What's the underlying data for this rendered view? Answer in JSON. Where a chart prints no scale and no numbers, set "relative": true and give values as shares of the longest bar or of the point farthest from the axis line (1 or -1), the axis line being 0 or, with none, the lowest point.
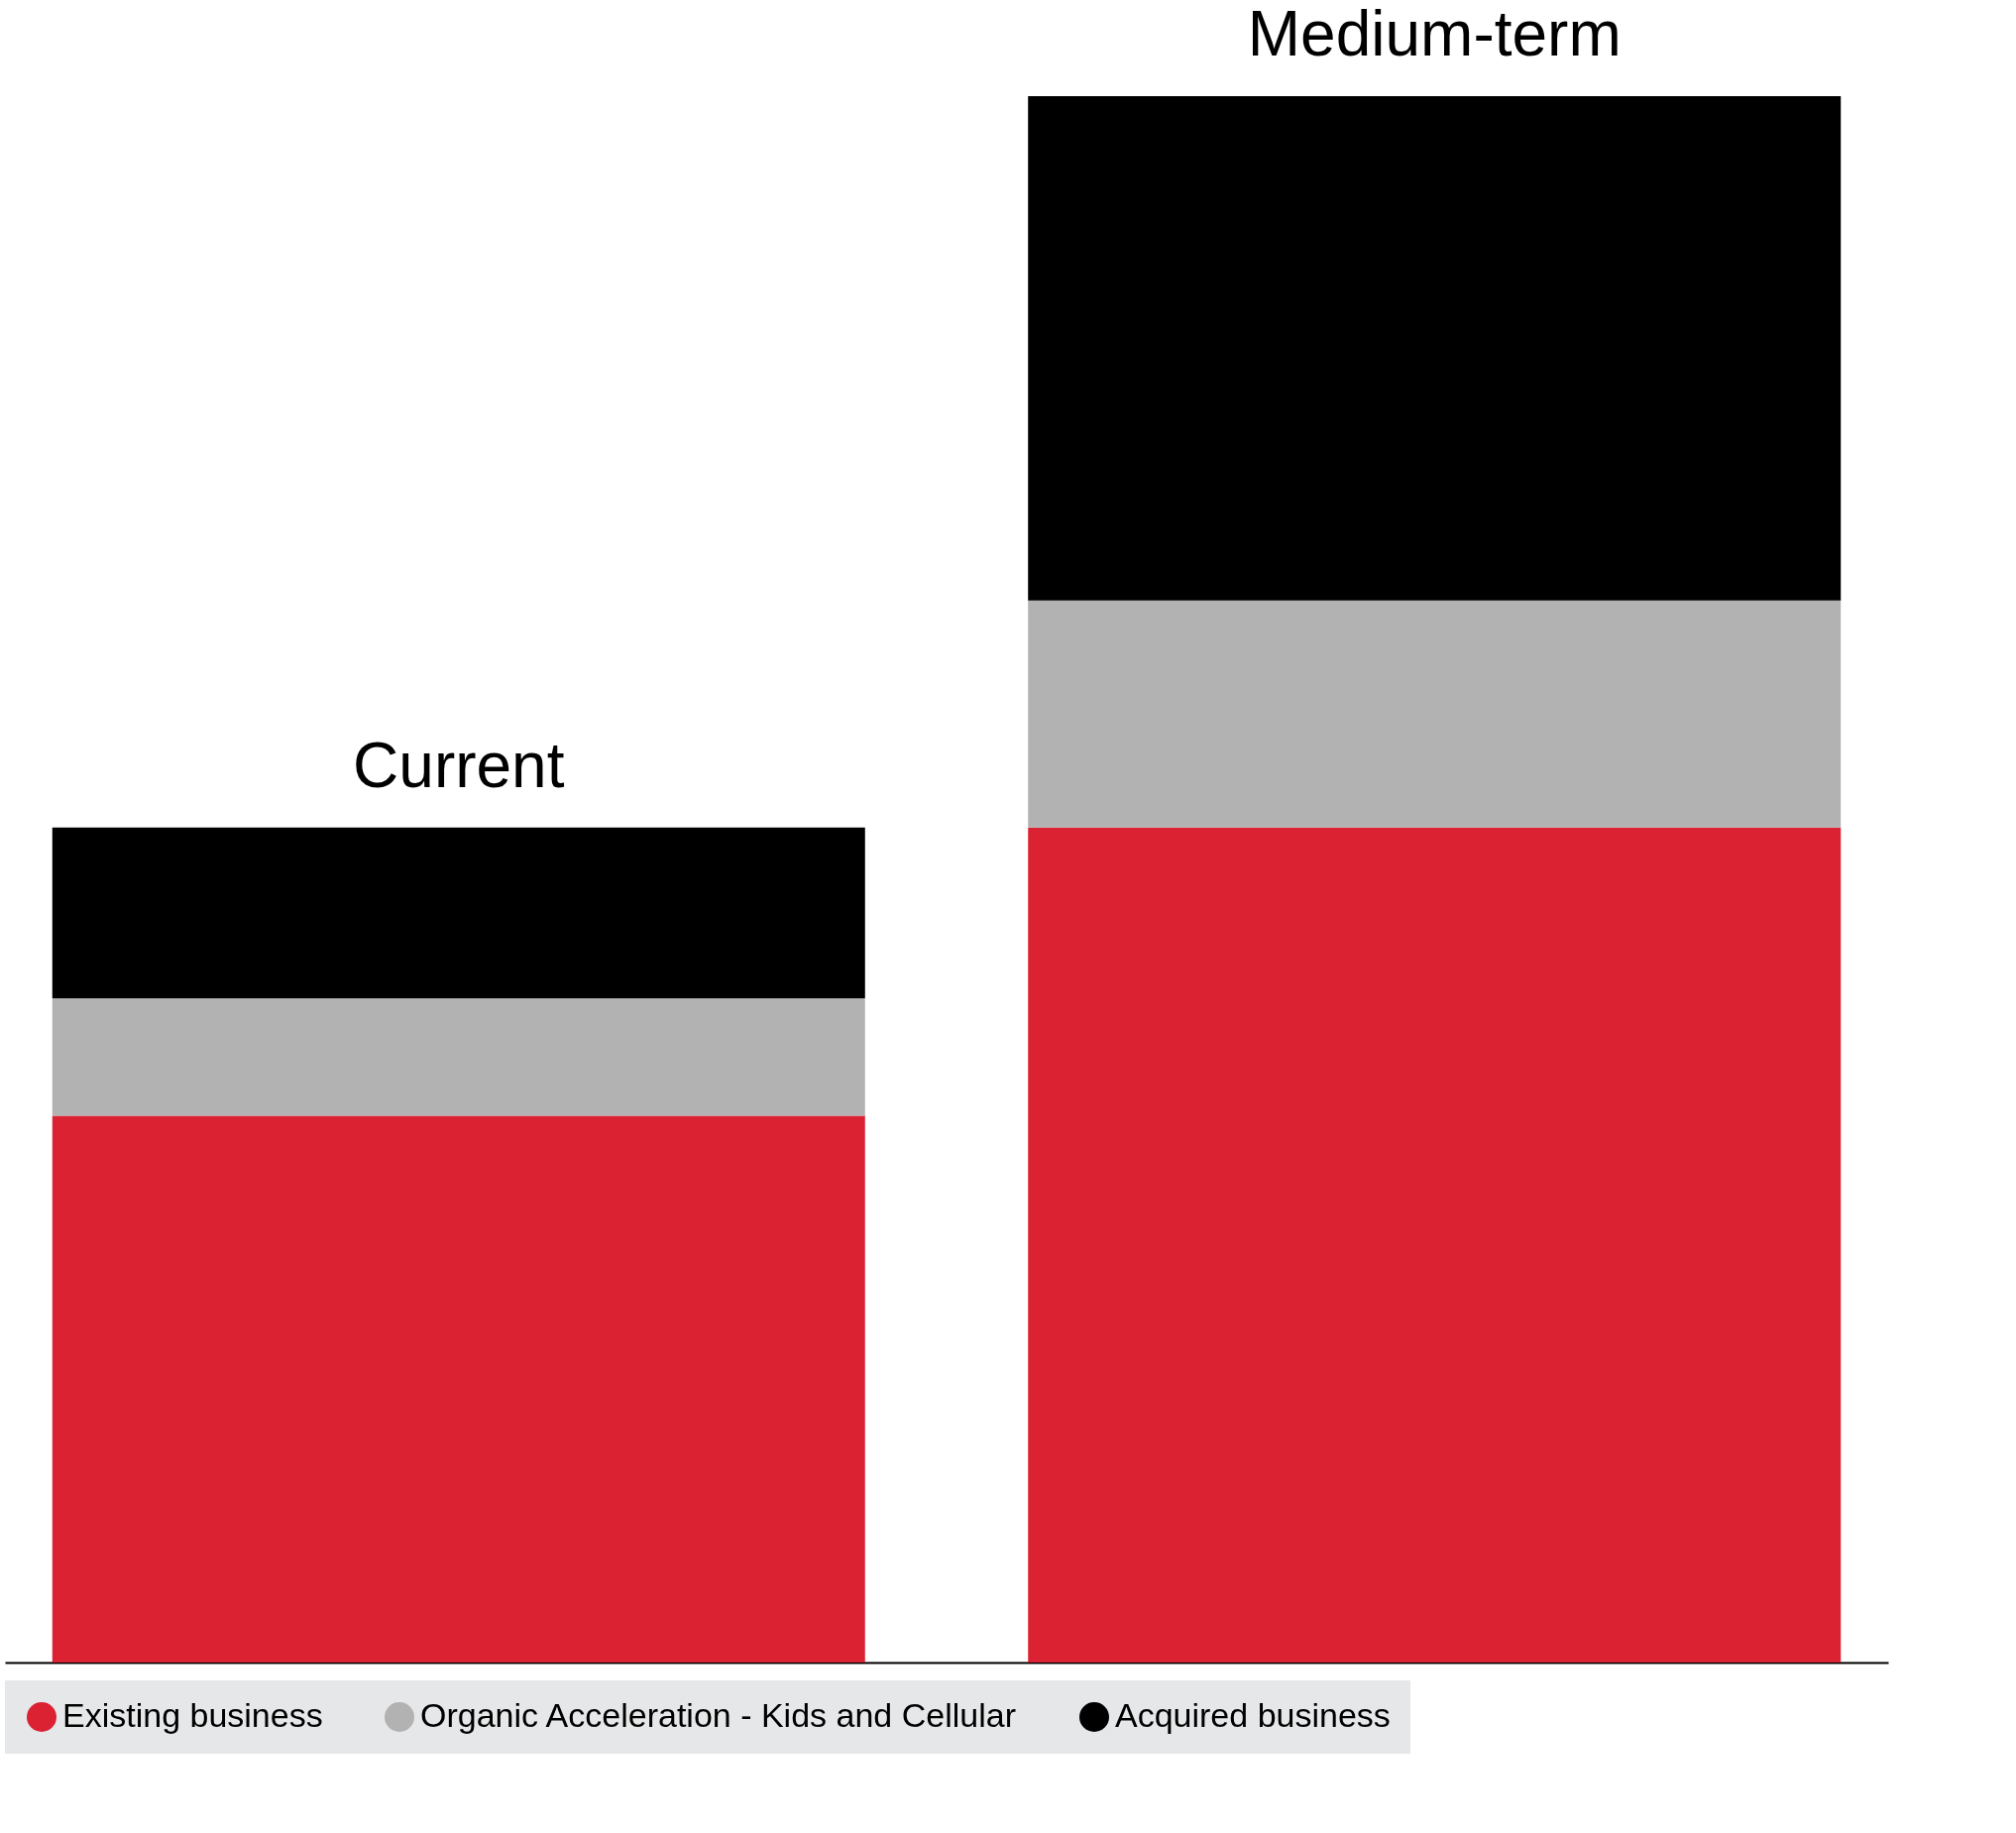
{
  "chart_data": {
    "type": "bar",
    "stacked": true,
    "relative": true,
    "legend": "bottom",
    "categories": [
      "Current",
      "Medium-term"
    ],
    "series": [
      {
        "name": "Existing business",
        "color": "#db2233",
        "values": [
          0.349,
          0.533
        ]
      },
      {
        "name": "Organic Acceleration - Kids and Cellular",
        "color": "#b2b2b2",
        "values": [
          0.075,
          0.145
        ]
      },
      {
        "name": "Acquired business",
        "color": "#000000",
        "values": [
          0.109,
          0.322
        ]
      }
    ]
  }
}
